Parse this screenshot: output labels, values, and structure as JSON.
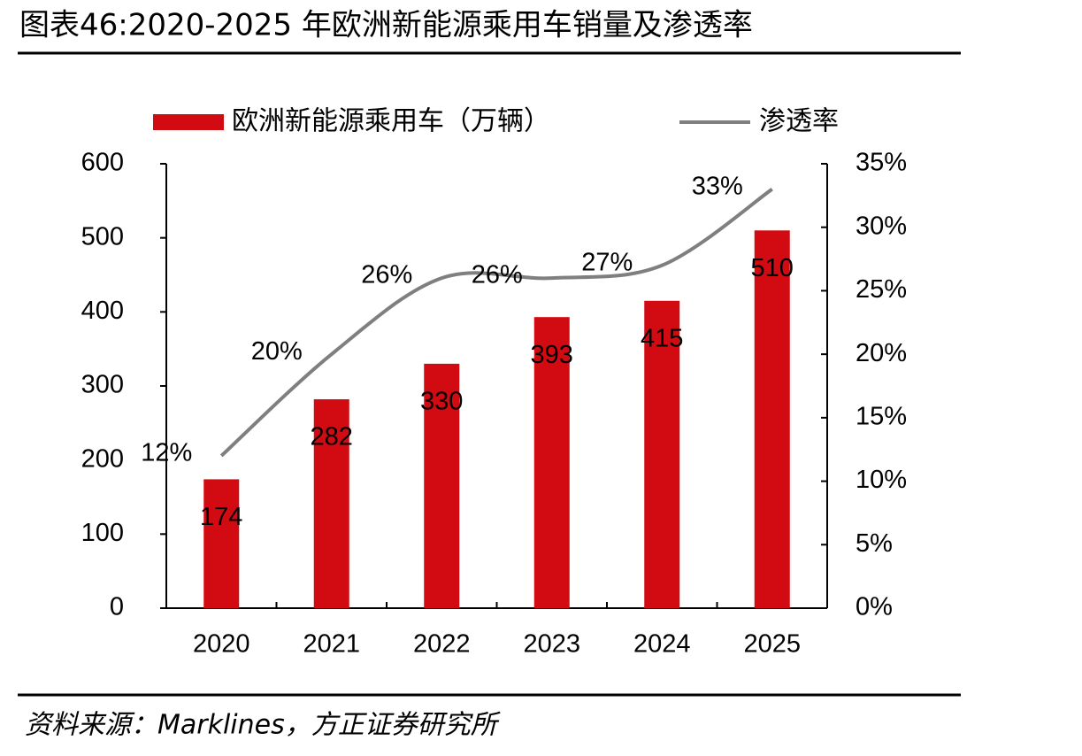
{
  "chart_data": {
    "type": "bar",
    "title": "图表46:2020-2025 年欧洲新能源乘用车销量及渗透率",
    "categories": [
      "2020",
      "2021",
      "2022",
      "2023",
      "2024",
      "2025"
    ],
    "series": [
      {
        "name": "欧洲新能源乘用车（万辆）",
        "type": "bar",
        "color": "#d20a11",
        "values": [
          174,
          282,
          330,
          393,
          415,
          510
        ]
      },
      {
        "name": "渗透率",
        "type": "line",
        "axis": "y2",
        "color": "#7f7f7f",
        "values": [
          12,
          20,
          26,
          26,
          27,
          33
        ],
        "value_labels": [
          "12%",
          "20%",
          "26%",
          "26%",
          "27%",
          "33%"
        ]
      }
    ],
    "ylim": [
      0,
      600
    ],
    "yticks": [
      0,
      100,
      200,
      300,
      400,
      500,
      600
    ],
    "y2lim": [
      0,
      35
    ],
    "y2ticks": [
      {
        "value": 0,
        "label": "0%"
      },
      {
        "value": 5,
        "label": "5%"
      },
      {
        "value": 10,
        "label": "10%"
      },
      {
        "value": 15,
        "label": "15%"
      },
      {
        "value": 20,
        "label": "20%"
      },
      {
        "value": 25,
        "label": "25%"
      },
      {
        "value": 30,
        "label": "30%"
      },
      {
        "value": 35,
        "label": "35%"
      }
    ],
    "grid": false,
    "legend": "top",
    "source": "资料来源：Marklines，方正证券研究所"
  }
}
